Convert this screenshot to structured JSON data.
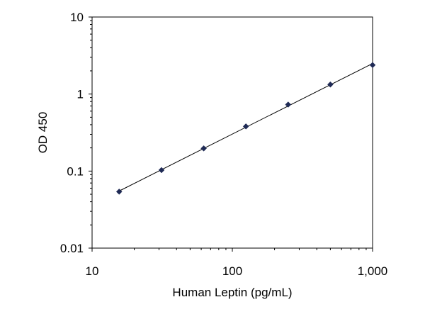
{
  "chart_data": {
    "type": "scatter",
    "title": "",
    "xlabel": "Human Leptin (pg/mL)",
    "ylabel": "OD 450",
    "x_scale": "log",
    "y_scale": "log",
    "xlim": [
      10,
      1000
    ],
    "ylim": [
      0.01,
      10
    ],
    "x_ticks": [
      10,
      100,
      1000
    ],
    "x_tick_labels": [
      "10",
      "100",
      "1,000"
    ],
    "y_ticks": [
      0.01,
      0.1,
      1,
      10
    ],
    "y_tick_labels": [
      "0.01",
      "0.1",
      "1",
      "10"
    ],
    "grid": false,
    "legend": "none",
    "series": [
      {
        "x": [
          15.6,
          31.25,
          62.5,
          125,
          250,
          500,
          1000
        ],
        "y": [
          0.054,
          0.103,
          0.197,
          0.38,
          0.73,
          1.33,
          2.38
        ],
        "marker": "diamond",
        "color": "#1f2a55",
        "trendline": true
      }
    ]
  }
}
